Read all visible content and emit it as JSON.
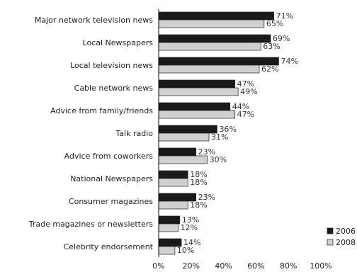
{
  "chart_data": {
    "type": "bar",
    "orientation": "horizontal",
    "title": "",
    "xlabel": "",
    "ylabel": "",
    "xlim": [
      0,
      100
    ],
    "x_ticks": [
      "0%",
      "20%",
      "40%",
      "60%",
      "80%",
      "100%"
    ],
    "grid": false,
    "legend_position": "bottom-right",
    "categories": [
      "Major network television news",
      "Local Newspapers",
      "Local television news",
      "Cable network news",
      "Advice from family/friends",
      "Talk radio",
      "Advice from coworkers",
      "National Newspapers",
      "Consumer magazines",
      "Trade magazines or newsletters",
      "Celebrity endorsement"
    ],
    "series": [
      {
        "name": "2006",
        "color": "#1a1a1a",
        "values": [
          71,
          69,
          74,
          47,
          44,
          36,
          23,
          18,
          23,
          13,
          14
        ],
        "labels": [
          "71%",
          "69%",
          "74%",
          "47%",
          "44%",
          "36%",
          "23%",
          "18%",
          "23%",
          "13%",
          "14%"
        ]
      },
      {
        "name": "2008",
        "color": "#d0d0d0",
        "values": [
          65,
          63,
          62,
          49,
          47,
          31,
          30,
          18,
          18,
          12,
          10
        ],
        "labels": [
          "65%",
          "63%",
          "62%",
          "49%",
          "47%",
          "31%",
          "30%",
          "18%",
          "18%",
          "12%",
          "10%"
        ]
      }
    ]
  }
}
